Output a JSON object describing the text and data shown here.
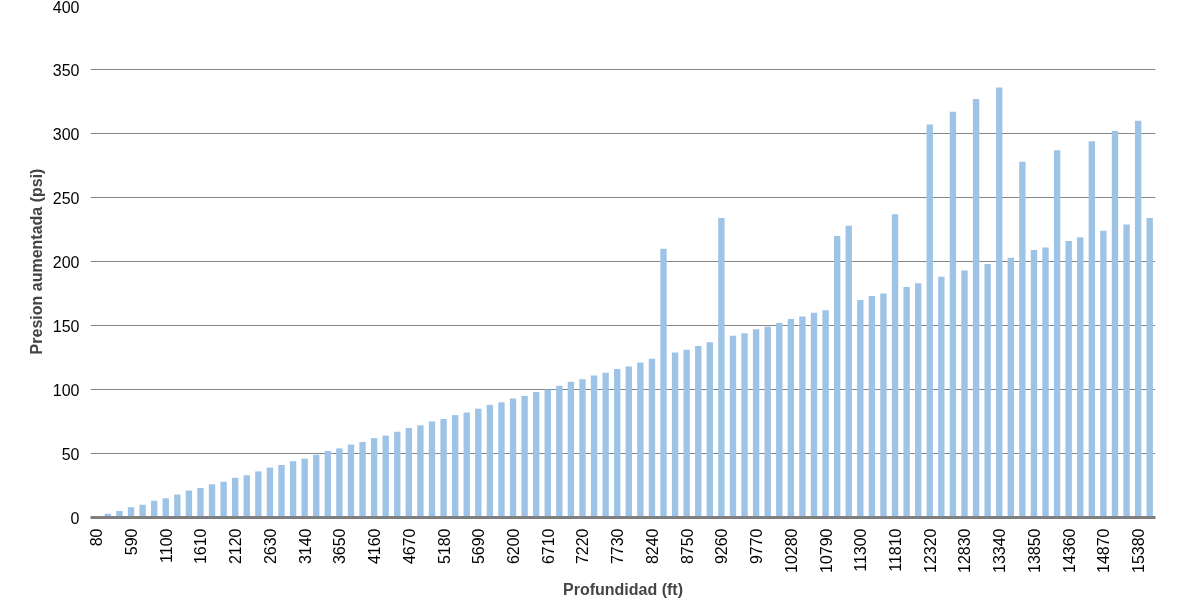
{
  "chart_data": {
    "type": "bar",
    "xlabel": "Profundidad (ft)",
    "ylabel": "Presion aumentada (psi)",
    "categories": [
      "80",
      null,
      null,
      "590",
      null,
      null,
      "1100",
      null,
      null,
      "1610",
      null,
      null,
      "2120",
      null,
      null,
      "2630",
      null,
      null,
      "3140",
      null,
      null,
      "3650",
      null,
      null,
      "4160",
      null,
      null,
      "4670",
      null,
      null,
      "5180",
      null,
      null,
      "5690",
      null,
      null,
      "6200",
      null,
      null,
      "6710",
      null,
      null,
      "7220",
      null,
      null,
      "7730",
      null,
      null,
      "8240",
      null,
      null,
      "8750",
      null,
      null,
      "9260",
      null,
      null,
      "9770",
      null,
      null,
      "10280",
      null,
      null,
      "10790",
      null,
      null,
      "11300",
      null,
      null,
      "11810",
      null,
      null,
      "12320",
      null,
      null,
      "12830",
      null,
      null,
      "13340",
      null,
      null,
      "13850",
      null,
      null,
      "14360",
      null,
      null,
      "14870",
      null,
      null,
      "15380",
      null
    ],
    "values": [
      0,
      3,
      5,
      8,
      10,
      13,
      15,
      18,
      21,
      23,
      26,
      28,
      31,
      33,
      36,
      39,
      41,
      44,
      46,
      49,
      52,
      54,
      57,
      59,
      62,
      64,
      67,
      70,
      72,
      75,
      77,
      80,
      82,
      85,
      88,
      90,
      93,
      95,
      98,
      100,
      103,
      106,
      108,
      111,
      113,
      116,
      118,
      121,
      124,
      210,
      129,
      131,
      134,
      137,
      234,
      142,
      144,
      147,
      149,
      152,
      155,
      157,
      160,
      162,
      220,
      228,
      170,
      173,
      175,
      237,
      180,
      183,
      307,
      188,
      317,
      193,
      327,
      198,
      336,
      203,
      278,
      209,
      211,
      287,
      216,
      219,
      294,
      224,
      302,
      229,
      310,
      234
    ],
    "color": "#9dc3e6",
    "ylim": [
      0,
      400
    ],
    "yticks": [
      0,
      50,
      100,
      150,
      200,
      250,
      300,
      350,
      400
    ],
    "grid": "y"
  }
}
